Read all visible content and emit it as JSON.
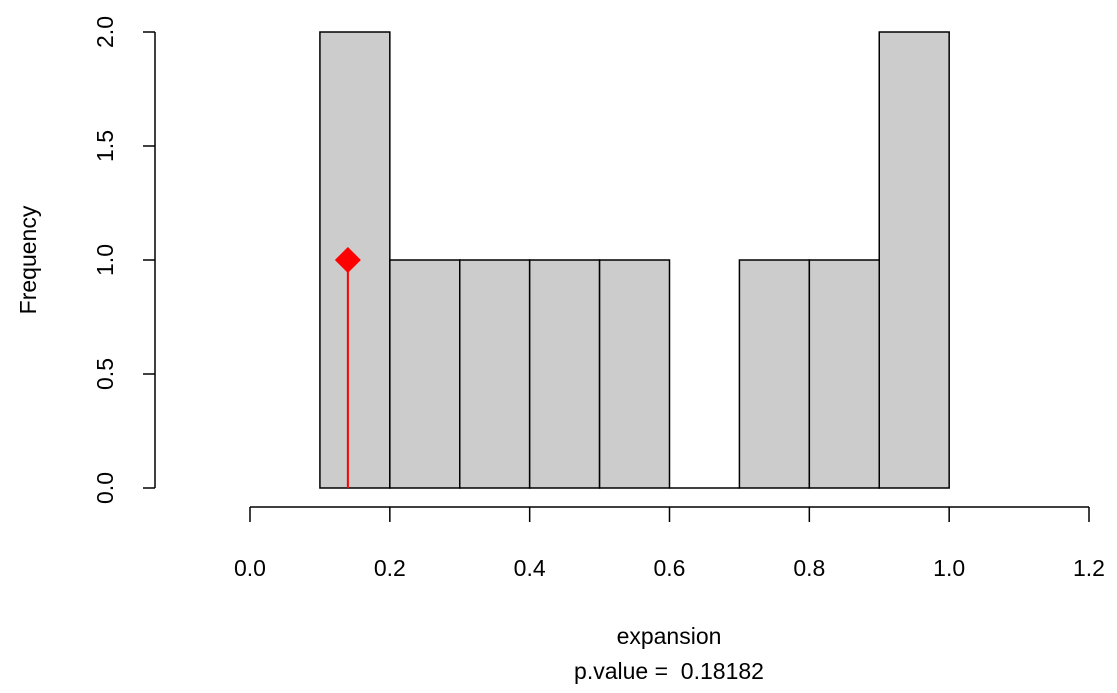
{
  "chart_data": {
    "type": "bar",
    "title": "",
    "xlabel": "expansion",
    "ylabel": "Frequency",
    "caption": "p.value =  0.18182",
    "bins": [
      {
        "x0": 0.1,
        "x1": 0.2,
        "count": 2
      },
      {
        "x0": 0.2,
        "x1": 0.3,
        "count": 1
      },
      {
        "x0": 0.3,
        "x1": 0.4,
        "count": 1
      },
      {
        "x0": 0.4,
        "x1": 0.5,
        "count": 1
      },
      {
        "x0": 0.5,
        "x1": 0.6,
        "count": 1
      },
      {
        "x0": 0.6,
        "x1": 0.7,
        "count": 0
      },
      {
        "x0": 0.7,
        "x1": 0.8,
        "count": 1
      },
      {
        "x0": 0.8,
        "x1": 0.9,
        "count": 1
      },
      {
        "x0": 0.9,
        "x1": 1.0,
        "count": 2
      }
    ],
    "xlim": [
      0.0,
      1.2
    ],
    "ylim": [
      0.0,
      2.0
    ],
    "x_ticks": [
      "0.0",
      "0.2",
      "0.4",
      "0.6",
      "0.8",
      "1.0",
      "1.2"
    ],
    "y_ticks": [
      "0.0",
      "0.5",
      "1.0",
      "1.5",
      "2.0"
    ],
    "grid": false,
    "observed": {
      "x": 0.14,
      "y": 1.0
    },
    "colors": {
      "bar_fill": "#cccccc",
      "bar_stroke": "#000000",
      "observed": "#ff0000"
    }
  }
}
